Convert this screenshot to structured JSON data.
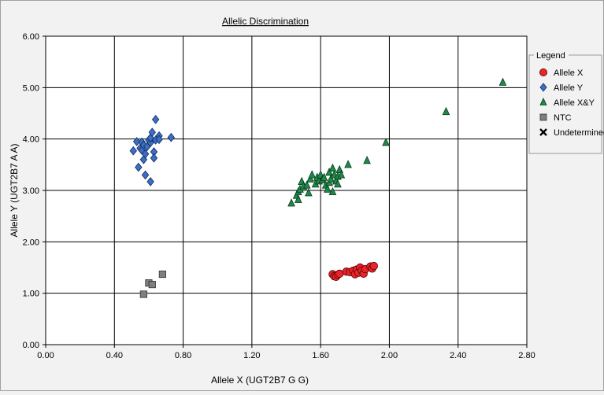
{
  "chart_data": {
    "type": "scatter",
    "title": "Allelic Discrimination",
    "xlabel": "Allele X (UGT2B7 G G)",
    "ylabel": "Allele Y (UGT2B7 A A)",
    "xlim": [
      0.0,
      2.8
    ],
    "ylim": [
      0.0,
      6.0
    ],
    "xticks": [
      "0.00",
      "0.40",
      "0.80",
      "1.20",
      "1.60",
      "2.00",
      "2.40",
      "2.80"
    ],
    "yticks": [
      "0.00",
      "1.00",
      "2.00",
      "3.00",
      "4.00",
      "5.00",
      "6.00"
    ],
    "grid": true,
    "legend_position": "right",
    "legend_title": "Legend",
    "series": [
      {
        "name": "Allele X",
        "marker": "circle",
        "color": "#e8252a",
        "points": [
          [
            1.67,
            1.37
          ],
          [
            1.68,
            1.33
          ],
          [
            1.69,
            1.32
          ],
          [
            1.7,
            1.36
          ],
          [
            1.71,
            1.38
          ],
          [
            1.75,
            1.42
          ],
          [
            1.77,
            1.41
          ],
          [
            1.79,
            1.44
          ],
          [
            1.8,
            1.37
          ],
          [
            1.81,
            1.46
          ],
          [
            1.82,
            1.4
          ],
          [
            1.83,
            1.5
          ],
          [
            1.84,
            1.44
          ],
          [
            1.85,
            1.38
          ],
          [
            1.86,
            1.47
          ],
          [
            1.89,
            1.52
          ],
          [
            1.9,
            1.48
          ],
          [
            1.91,
            1.53
          ]
        ]
      },
      {
        "name": "Allele Y",
        "marker": "diamond",
        "color": "#3d6fc1",
        "points": [
          [
            0.51,
            3.77
          ],
          [
            0.53,
            3.95
          ],
          [
            0.54,
            3.45
          ],
          [
            0.55,
            3.82
          ],
          [
            0.56,
            3.94
          ],
          [
            0.56,
            3.78
          ],
          [
            0.57,
            3.6
          ],
          [
            0.57,
            3.88
          ],
          [
            0.58,
            3.71
          ],
          [
            0.58,
            3.3
          ],
          [
            0.59,
            3.85
          ],
          [
            0.6,
            3.98
          ],
          [
            0.61,
            3.93
          ],
          [
            0.61,
            3.17
          ],
          [
            0.61,
            4.02
          ],
          [
            0.62,
            4.13
          ],
          [
            0.63,
            3.75
          ],
          [
            0.63,
            3.63
          ],
          [
            0.64,
            4.38
          ],
          [
            0.64,
            3.98
          ],
          [
            0.66,
            4.06
          ],
          [
            0.66,
            3.99
          ],
          [
            0.73,
            4.03
          ]
        ]
      },
      {
        "name": "Allele X&Y",
        "marker": "triangle",
        "color": "#1e8a4a",
        "points": [
          [
            1.43,
            2.75
          ],
          [
            1.46,
            2.9
          ],
          [
            1.47,
            2.97
          ],
          [
            1.47,
            2.82
          ],
          [
            1.48,
            3.02
          ],
          [
            1.49,
            3.17
          ],
          [
            1.5,
            3.08
          ],
          [
            1.52,
            3.1
          ],
          [
            1.53,
            2.95
          ],
          [
            1.54,
            3.22
          ],
          [
            1.55,
            3.3
          ],
          [
            1.57,
            3.12
          ],
          [
            1.58,
            3.25
          ],
          [
            1.59,
            3.18
          ],
          [
            1.6,
            3.3
          ],
          [
            1.61,
            3.2
          ],
          [
            1.62,
            3.25
          ],
          [
            1.63,
            3.1
          ],
          [
            1.64,
            3.02
          ],
          [
            1.65,
            3.15
          ],
          [
            1.65,
            3.35
          ],
          [
            1.66,
            3.22
          ],
          [
            1.67,
            3.43
          ],
          [
            1.67,
            2.97
          ],
          [
            1.68,
            3.3
          ],
          [
            1.69,
            3.18
          ],
          [
            1.7,
            3.27
          ],
          [
            1.7,
            3.12
          ],
          [
            1.71,
            3.4
          ],
          [
            1.72,
            3.3
          ],
          [
            1.76,
            3.5
          ],
          [
            1.87,
            3.58
          ],
          [
            1.98,
            3.93
          ],
          [
            2.33,
            4.53
          ],
          [
            2.66,
            5.1
          ]
        ]
      },
      {
        "name": "NTC",
        "marker": "square",
        "color": "#7f7f7f",
        "points": [
          [
            0.57,
            0.98
          ],
          [
            0.6,
            1.2
          ],
          [
            0.62,
            1.17
          ],
          [
            0.68,
            1.37
          ]
        ]
      },
      {
        "name": "Undetermined",
        "marker": "x",
        "color": "#000000",
        "points": []
      }
    ]
  }
}
